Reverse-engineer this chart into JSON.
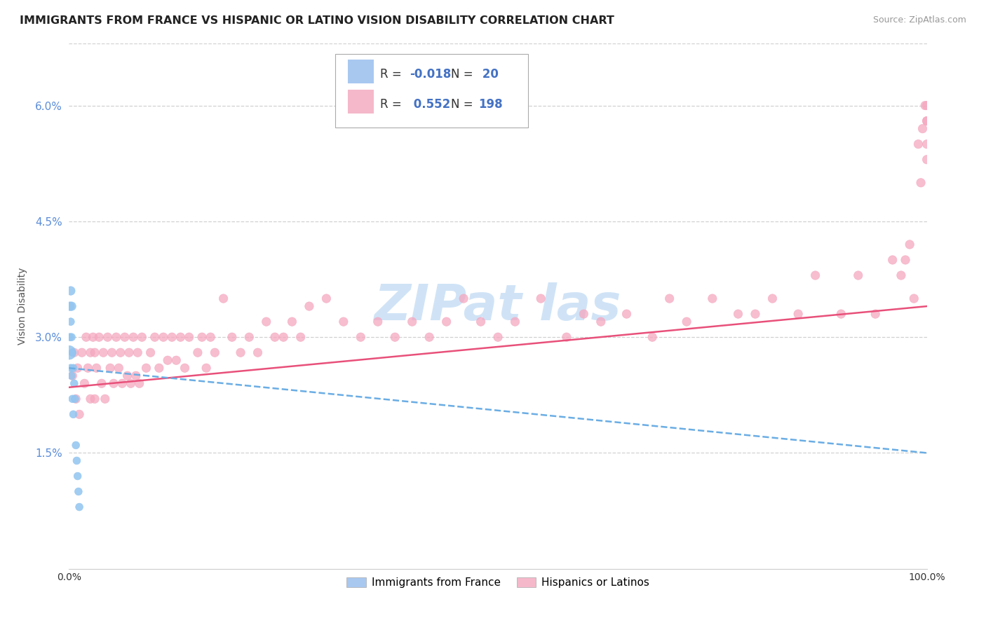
{
  "title": "IMMIGRANTS FROM FRANCE VS HISPANIC OR LATINO VISION DISABILITY CORRELATION CHART",
  "source": "Source: ZipAtlas.com",
  "ylabel": "Vision Disability",
  "xlim": [
    0.0,
    1.0
  ],
  "ylim": [
    0.0,
    0.068
  ],
  "yticks": [
    0.015,
    0.03,
    0.045,
    0.06
  ],
  "ytick_labels": [
    "1.5%",
    "3.0%",
    "4.5%",
    "6.0%"
  ],
  "xtick_left": "0.0%",
  "xtick_right": "100.0%",
  "legend_r1": "R = -0.018",
  "legend_n1": "N =  20",
  "legend_r2": "R =  0.552",
  "legend_n2": "N = 198",
  "legend_color1": "#a8c8f0",
  "legend_color2": "#f5b8ca",
  "legend_footer": [
    "Immigrants from France",
    "Hispanics or Latinos"
  ],
  "blue_scatter_x": [
    0.0,
    0.001,
    0.001,
    0.002,
    0.002,
    0.002,
    0.003,
    0.003,
    0.003,
    0.004,
    0.004,
    0.005,
    0.005,
    0.006,
    0.007,
    0.008,
    0.009,
    0.01,
    0.011,
    0.012
  ],
  "blue_scatter_y": [
    0.028,
    0.034,
    0.03,
    0.036,
    0.032,
    0.026,
    0.034,
    0.03,
    0.025,
    0.028,
    0.022,
    0.026,
    0.02,
    0.024,
    0.022,
    0.016,
    0.014,
    0.012,
    0.01,
    0.008
  ],
  "blue_scatter_sizes": [
    200,
    80,
    60,
    80,
    60,
    60,
    80,
    60,
    60,
    60,
    60,
    60,
    60,
    60,
    60,
    60,
    60,
    60,
    60,
    60
  ],
  "pink_scatter_x": [
    0.004,
    0.006,
    0.008,
    0.01,
    0.012,
    0.015,
    0.018,
    0.02,
    0.022,
    0.025,
    0.025,
    0.028,
    0.03,
    0.03,
    0.032,
    0.035,
    0.038,
    0.04,
    0.042,
    0.045,
    0.048,
    0.05,
    0.052,
    0.055,
    0.058,
    0.06,
    0.062,
    0.065,
    0.068,
    0.07,
    0.072,
    0.075,
    0.078,
    0.08,
    0.082,
    0.085,
    0.09,
    0.095,
    0.1,
    0.105,
    0.11,
    0.115,
    0.12,
    0.125,
    0.13,
    0.135,
    0.14,
    0.15,
    0.155,
    0.16,
    0.165,
    0.17,
    0.18,
    0.19,
    0.2,
    0.21,
    0.22,
    0.23,
    0.24,
    0.25,
    0.26,
    0.27,
    0.28,
    0.3,
    0.32,
    0.34,
    0.36,
    0.38,
    0.4,
    0.42,
    0.44,
    0.46,
    0.48,
    0.5,
    0.52,
    0.55,
    0.58,
    0.6,
    0.62,
    0.65,
    0.68,
    0.7,
    0.72,
    0.75,
    0.78,
    0.8,
    0.82,
    0.85,
    0.87,
    0.9,
    0.92,
    0.94,
    0.96,
    0.97,
    0.975,
    0.98,
    0.985,
    0.99,
    0.993,
    0.995,
    0.998,
    1.0,
    1.0,
    1.0,
    1.0,
    1.0
  ],
  "pink_scatter_y": [
    0.025,
    0.028,
    0.022,
    0.026,
    0.02,
    0.028,
    0.024,
    0.03,
    0.026,
    0.028,
    0.022,
    0.03,
    0.028,
    0.022,
    0.026,
    0.03,
    0.024,
    0.028,
    0.022,
    0.03,
    0.026,
    0.028,
    0.024,
    0.03,
    0.026,
    0.028,
    0.024,
    0.03,
    0.025,
    0.028,
    0.024,
    0.03,
    0.025,
    0.028,
    0.024,
    0.03,
    0.026,
    0.028,
    0.03,
    0.026,
    0.03,
    0.027,
    0.03,
    0.027,
    0.03,
    0.026,
    0.03,
    0.028,
    0.03,
    0.026,
    0.03,
    0.028,
    0.035,
    0.03,
    0.028,
    0.03,
    0.028,
    0.032,
    0.03,
    0.03,
    0.032,
    0.03,
    0.034,
    0.035,
    0.032,
    0.03,
    0.032,
    0.03,
    0.032,
    0.03,
    0.032,
    0.035,
    0.032,
    0.03,
    0.032,
    0.035,
    0.03,
    0.033,
    0.032,
    0.033,
    0.03,
    0.035,
    0.032,
    0.035,
    0.033,
    0.033,
    0.035,
    0.033,
    0.038,
    0.033,
    0.038,
    0.033,
    0.04,
    0.038,
    0.04,
    0.042,
    0.035,
    0.055,
    0.05,
    0.057,
    0.06,
    0.058,
    0.06,
    0.053,
    0.055,
    0.058
  ],
  "pink_scatter_sizes": [
    80,
    80,
    80,
    80,
    80,
    80,
    80,
    80,
    80,
    80,
    80,
    80,
    80,
    80,
    80,
    80,
    80,
    80,
    80,
    80,
    80,
    80,
    80,
    80,
    80,
    80,
    80,
    80,
    80,
    80,
    80,
    80,
    80,
    80,
    80,
    80,
    80,
    80,
    80,
    80,
    80,
    80,
    80,
    80,
    80,
    80,
    80,
    80,
    80,
    80,
    80,
    80,
    80,
    80,
    80,
    80,
    80,
    80,
    80,
    80,
    80,
    80,
    80,
    80,
    80,
    80,
    80,
    80,
    80,
    80,
    80,
    80,
    80,
    80,
    80,
    80,
    80,
    80,
    80,
    80,
    80,
    80,
    80,
    80,
    80,
    80,
    80,
    80,
    80,
    80,
    80,
    80,
    80,
    80,
    80,
    80,
    80,
    80,
    80,
    80,
    80,
    80,
    80,
    80,
    80,
    80
  ],
  "blue_line_x": [
    0.0,
    1.0
  ],
  "blue_line_y": [
    0.026,
    0.015
  ],
  "pink_line_x": [
    0.0,
    1.0
  ],
  "pink_line_y": [
    0.0235,
    0.034
  ],
  "scatter_color_blue": "#92C5F0",
  "scatter_color_pink": "#F5A8C0",
  "line_color_blue": "#6AADE4",
  "line_color_pink": "#E8507A",
  "grid_color": "#cccccc",
  "background_color": "#ffffff",
  "title_fontsize": 11.5,
  "ytick_color": "#5B8DD9",
  "xtick_color": "#333333",
  "watermark_text": "ZIPat las",
  "watermark_color": "#C8DFF5",
  "ylabel_color": "#555555"
}
